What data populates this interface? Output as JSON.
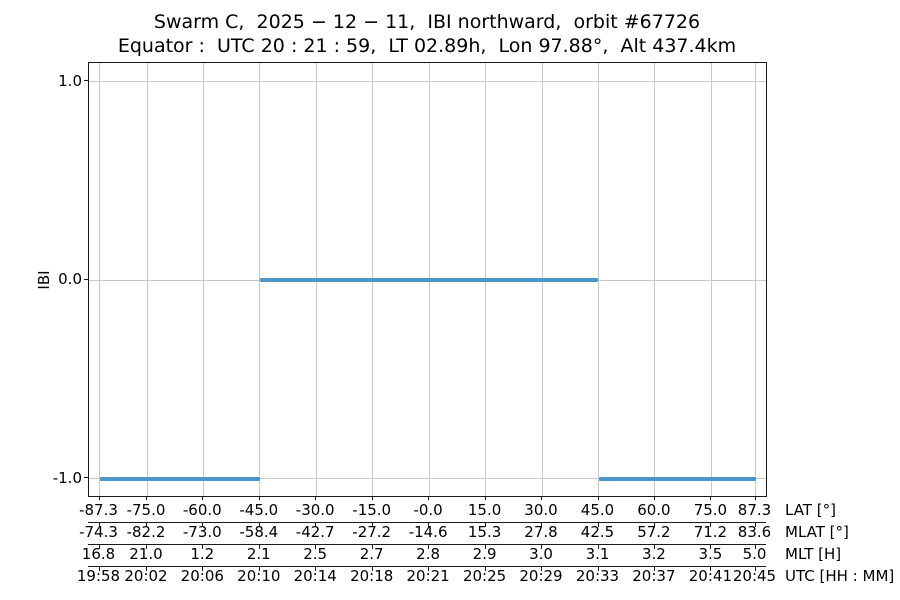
{
  "chart_data": {
    "type": "line",
    "title": "Swarm C,  2025 − 12 − 11,  IBI northward,  orbit #67726",
    "subtitle": "Equator :  UTC 20 : 21 : 59,  LT 02.89h,  Lon 97.88°,  Alt 437.4km",
    "ylabel": "IBI",
    "ylim": [
      -1.09,
      1.09
    ],
    "grid": true,
    "line_color": "#4a96c8",
    "yticks": [
      {
        "value": 1.0,
        "label": "1.0"
      },
      {
        "value": 0.0,
        "label": "0.0"
      },
      {
        "value": -1.0,
        "label": "-1.0"
      }
    ],
    "series": [
      {
        "name": "IBI",
        "segments": [
          {
            "value": -1.0,
            "from_tick_index": 0,
            "to_tick_index": 3
          },
          {
            "value": 0.0,
            "from_tick_index": 3,
            "to_tick_index": 9
          },
          {
            "value": -1.0,
            "from_tick_index": 9,
            "to_tick_index": 12
          }
        ]
      }
    ],
    "x_axes": [
      {
        "name": "LAT [°]",
        "labels": [
          "-87.3",
          "-75.0",
          "-60.0",
          "-45.0",
          "-30.0",
          "-15.0",
          "-0.0",
          "15.0",
          "30.0",
          "45.0",
          "60.0",
          "75.0",
          "87.3"
        ]
      },
      {
        "name": "MLAT [°]",
        "labels": [
          "-74.3",
          "-82.2",
          "-73.0",
          "-58.4",
          "-42.7",
          "-27.2",
          "-14.6",
          "15.3",
          "27.8",
          "42.5",
          "57.2",
          "71.2",
          "83.6"
        ]
      },
      {
        "name": "MLT [H]",
        "labels": [
          "16.8",
          "21.0",
          "1.2",
          "2.1",
          "2.5",
          "2.7",
          "2.8",
          "2.9",
          "3.0",
          "3.1",
          "3.2",
          "3.5",
          "5.0"
        ]
      },
      {
        "name": "UTC [HH : MM]",
        "labels": [
          "19:58",
          "20:02",
          "20:06",
          "20:10",
          "20:14",
          "20:18",
          "20:21",
          "20:25",
          "20:29",
          "20:33",
          "20:37",
          "20:41",
          "20:45"
        ]
      }
    ]
  }
}
